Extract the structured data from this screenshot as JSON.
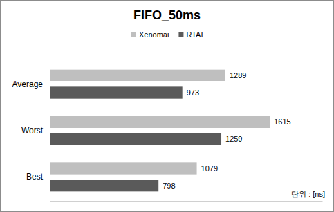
{
  "chart_data": {
    "type": "bar",
    "title": "FIFO_50ms",
    "orientation": "horizontal",
    "categories": [
      "Average",
      "Worst",
      "Best"
    ],
    "series": [
      {
        "name": "Xenomai",
        "color": "#bfbfbf",
        "values": [
          1289,
          1615,
          1079
        ]
      },
      {
        "name": "RTAI",
        "color": "#5a5a5a",
        "values": [
          973,
          1259,
          798
        ]
      }
    ],
    "xlim": [
      0,
      2000
    ],
    "xlabel": "단위 : [ns]",
    "grid": false,
    "legend": "top",
    "data_labels": true,
    "tick_labels": "y"
  }
}
